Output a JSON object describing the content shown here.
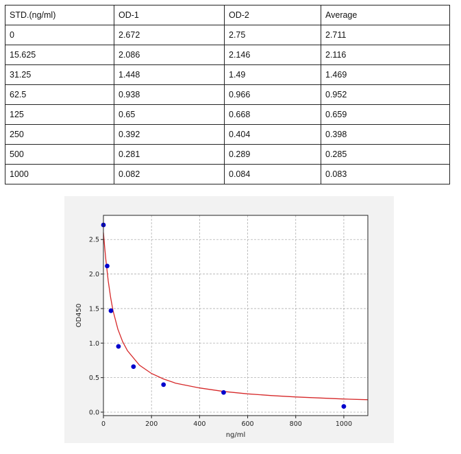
{
  "table": {
    "headers": [
      "STD.(ng/ml)",
      "OD-1",
      "OD-2",
      "Average"
    ],
    "rows": [
      [
        "0",
        "2.672",
        "2.75",
        "2.711"
      ],
      [
        "15.625",
        "2.086",
        "2.146",
        "2.116"
      ],
      [
        "31.25",
        "1.448",
        "1.49",
        "1.469"
      ],
      [
        "62.5",
        "0.938",
        "0.966",
        "0.952"
      ],
      [
        "125",
        "0.65",
        "0.668",
        "0.659"
      ],
      [
        "250",
        "0.392",
        "0.404",
        "0.398"
      ],
      [
        "500",
        "0.281",
        "0.289",
        "0.285"
      ],
      [
        "1000",
        "0.082",
        "0.084",
        "0.083"
      ]
    ]
  },
  "chart_data": {
    "type": "scatter",
    "title": "",
    "xlabel": "ng/ml",
    "ylabel": "OD450",
    "xlim": [
      0,
      1100
    ],
    "ylim": [
      -0.05,
      2.85
    ],
    "xticks": [
      0,
      200,
      400,
      600,
      800,
      1000
    ],
    "xtick_labels": [
      "0",
      "200",
      "400",
      "600",
      "800",
      "1000"
    ],
    "yticks": [
      0.0,
      0.5,
      1.0,
      1.5,
      2.0,
      2.5
    ],
    "ytick_labels": [
      "0.0",
      "0.5",
      "1.0",
      "1.5",
      "2.0",
      "2.5"
    ],
    "grid": true,
    "points": {
      "x": [
        0,
        15.625,
        31.25,
        62.5,
        125,
        250,
        500,
        1000
      ],
      "y": [
        2.711,
        2.116,
        1.469,
        0.952,
        0.659,
        0.398,
        0.285,
        0.083
      ],
      "color": "#0000cc"
    },
    "fit_curve": {
      "x": [
        0,
        5,
        10,
        20,
        30,
        40,
        60,
        80,
        100,
        150,
        200,
        250,
        300,
        400,
        500,
        600,
        700,
        800,
        900,
        1000,
        1100
      ],
      "y": [
        2.6,
        2.39,
        2.21,
        1.9,
        1.66,
        1.47,
        1.2,
        1.02,
        0.89,
        0.68,
        0.56,
        0.48,
        0.42,
        0.35,
        0.3,
        0.265,
        0.24,
        0.22,
        0.205,
        0.19,
        0.18
      ],
      "color": "#d62728"
    }
  }
}
